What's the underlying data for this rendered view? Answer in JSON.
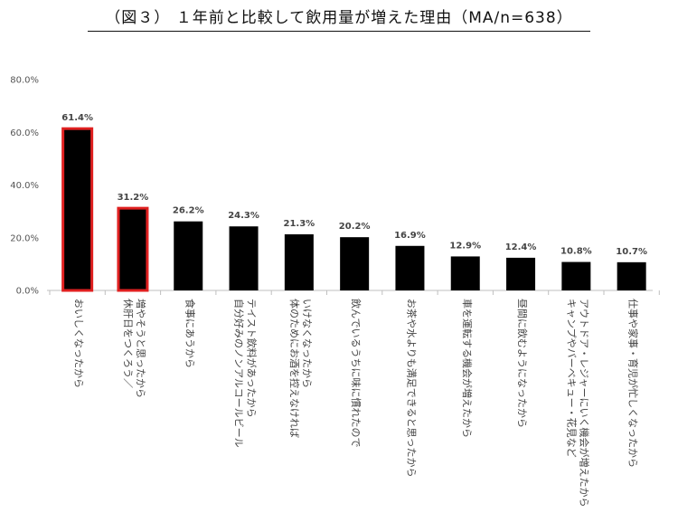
{
  "chart_data": {
    "type": "bar",
    "title": "（図３） １年前と比較して飲用量が増えた理由（MA/n=638）",
    "ylim": [
      0,
      80
    ],
    "yticks": [
      "0.0%",
      "20.0%",
      "40.0%",
      "60.0%",
      "80.0%"
    ],
    "grid": false,
    "categories": [
      [
        "おいしくなったから"
      ],
      [
        "休肝日をつくろう／",
        "増やそうと思ったから"
      ],
      [
        "食事にあうから"
      ],
      [
        "自分好みのノンアルコールビール",
        "テイスト飲料があったから"
      ],
      [
        "体のためにお酒を控えなければ",
        "いけなくなったから"
      ],
      [
        "飲んでいるうちに味に慣れたので"
      ],
      [
        "お茶や水よりも満足できると思ったから"
      ],
      [
        "車を運転する機会が増えたから"
      ],
      [
        "昼間に飲むようになったから"
      ],
      [
        "キャンプやバーベキュー・花見など",
        "アウトドア・レジャーにいく機会が増えたから"
      ],
      [
        "仕事や家事・育児が忙しくなったから"
      ]
    ],
    "values": [
      61.4,
      31.2,
      26.2,
      24.3,
      21.3,
      20.2,
      16.9,
      12.9,
      12.4,
      10.8,
      10.7
    ],
    "value_labels": [
      "61.4%",
      "31.2%",
      "26.2%",
      "24.3%",
      "21.3%",
      "20.2%",
      "16.9%",
      "12.9%",
      "12.4%",
      "10.8%",
      "10.7%"
    ],
    "highlighted": [
      true,
      true,
      false,
      false,
      false,
      false,
      false,
      false,
      false,
      false,
      false
    ],
    "colors": {
      "bar": "#000000",
      "highlight_border": "#e02020",
      "axis": "#bfbfbf"
    }
  }
}
